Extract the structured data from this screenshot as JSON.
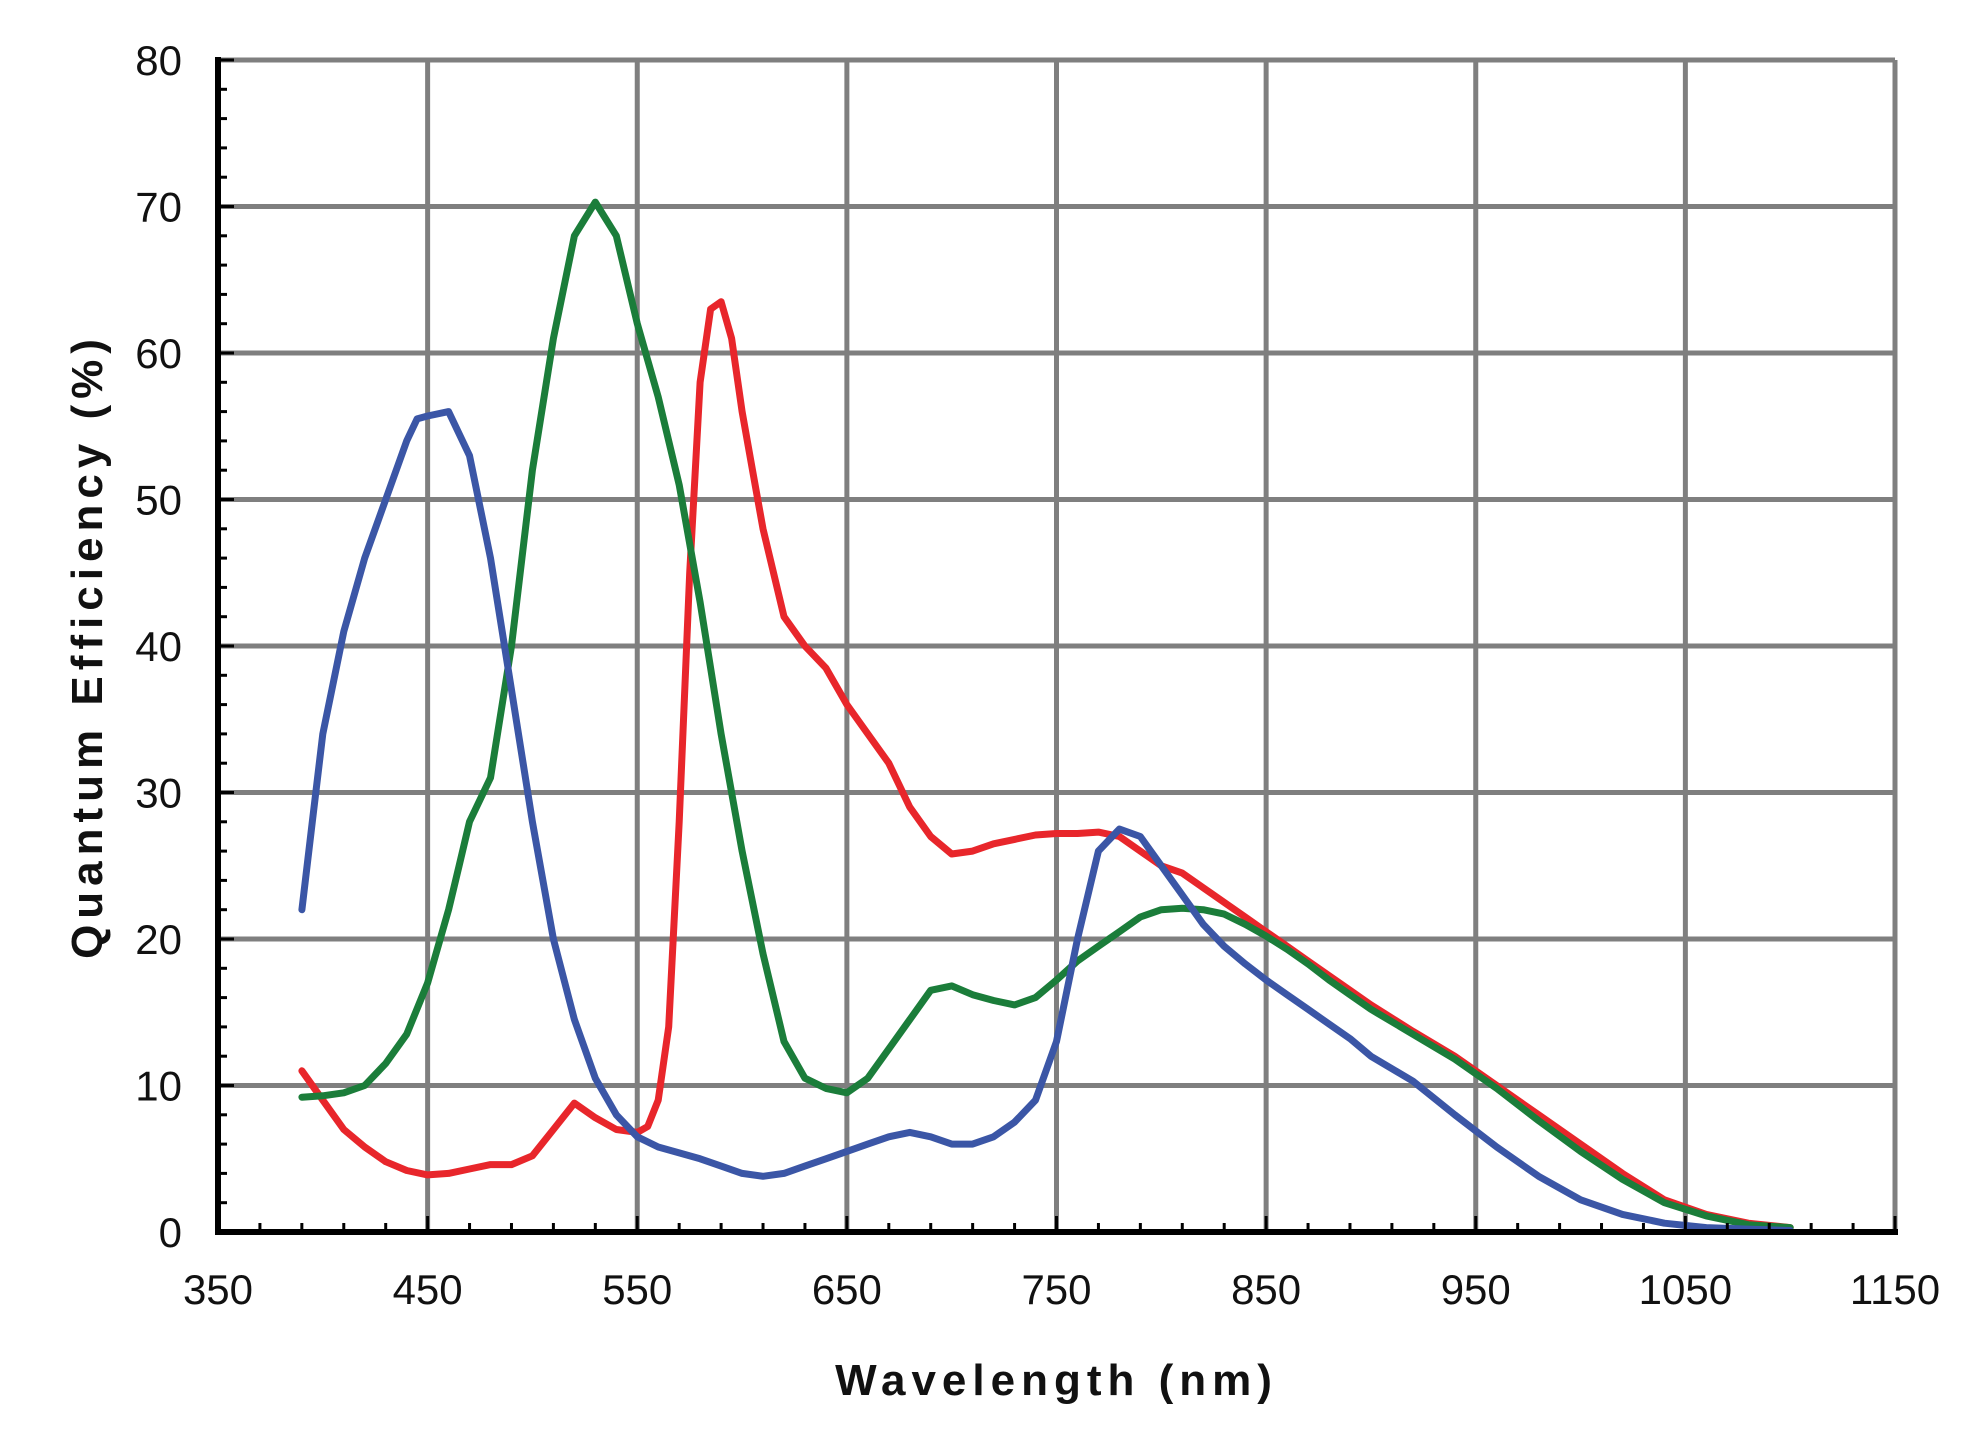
{
  "chart_data": {
    "type": "line",
    "title": "",
    "xlabel": "Wavelength (nm)",
    "ylabel": "Quantum Efficiency (%)",
    "xlim": [
      350,
      1150
    ],
    "ylim": [
      0,
      80
    ],
    "x_ticks": [
      350,
      450,
      550,
      650,
      750,
      850,
      950,
      1050,
      1150
    ],
    "y_ticks": [
      0,
      10,
      20,
      30,
      40,
      50,
      60,
      70,
      80
    ],
    "grid": true,
    "legend": "none",
    "colors": {
      "grid": "#7f7f7f",
      "axis": "#000000",
      "red": "#e8262b",
      "green": "#1b7d3a",
      "blue": "#3b56a6"
    },
    "series": [
      {
        "color": "#e8262b",
        "x": [
          390,
          400,
          410,
          420,
          430,
          440,
          450,
          460,
          470,
          480,
          490,
          500,
          510,
          520,
          530,
          540,
          550,
          555,
          560,
          565,
          570,
          575,
          580,
          585,
          590,
          595,
          600,
          605,
          610,
          620,
          630,
          640,
          650,
          660,
          670,
          680,
          690,
          700,
          710,
          720,
          730,
          740,
          750,
          760,
          770,
          780,
          790,
          800,
          810,
          820,
          830,
          840,
          850,
          860,
          870,
          880,
          890,
          900,
          920,
          940,
          960,
          980,
          1000,
          1020,
          1040,
          1060,
          1080,
          1100
        ],
        "y": [
          11,
          9,
          7,
          5.8,
          4.8,
          4.2,
          3.9,
          4,
          4.3,
          4.6,
          4.6,
          5.2,
          7,
          8.8,
          7.8,
          7,
          6.8,
          7.2,
          9,
          14,
          28,
          45,
          58,
          63,
          63.5,
          61,
          56,
          52,
          48,
          42,
          40,
          38.5,
          36,
          34,
          32,
          29,
          27,
          25.8,
          26,
          26.5,
          26.8,
          27.1,
          27.2,
          27.2,
          27.3,
          27,
          26,
          25,
          24.5,
          23.5,
          22.5,
          21.5,
          20.5,
          19.5,
          18.5,
          17.5,
          16.5,
          15.5,
          13.7,
          12,
          10,
          8,
          6,
          4,
          2.2,
          1.2,
          0.6,
          0.3
        ]
      },
      {
        "color": "#1b7d3a",
        "x": [
          390,
          400,
          410,
          420,
          430,
          440,
          450,
          460,
          465,
          470,
          480,
          490,
          500,
          510,
          520,
          530,
          540,
          550,
          560,
          570,
          580,
          590,
          600,
          610,
          620,
          630,
          640,
          650,
          660,
          670,
          680,
          690,
          700,
          710,
          720,
          730,
          740,
          750,
          760,
          770,
          780,
          790,
          800,
          810,
          820,
          830,
          840,
          850,
          860,
          870,
          880,
          890,
          900,
          920,
          940,
          960,
          980,
          1000,
          1020,
          1040,
          1060,
          1080,
          1100
        ],
        "y": [
          9.2,
          9.3,
          9.5,
          10,
          11.5,
          13.5,
          17,
          22,
          25,
          28,
          31,
          40,
          52,
          61,
          68,
          70.3,
          68,
          62,
          57,
          51,
          43,
          34,
          26,
          19,
          13,
          10.5,
          9.8,
          9.5,
          10.5,
          12.5,
          14.5,
          16.5,
          16.8,
          16.2,
          15.8,
          15.5,
          16,
          17.2,
          18.5,
          19.5,
          20.5,
          21.5,
          22,
          22.1,
          22,
          21.7,
          21,
          20.2,
          19.3,
          18.3,
          17.2,
          16.2,
          15.2,
          13.5,
          11.8,
          9.8,
          7.6,
          5.5,
          3.6,
          2,
          1.1,
          0.5,
          0.3
        ]
      },
      {
        "color": "#3b56a6",
        "x": [
          390,
          395,
          400,
          410,
          420,
          430,
          440,
          445,
          450,
          460,
          470,
          480,
          490,
          500,
          510,
          520,
          530,
          540,
          550,
          560,
          570,
          580,
          590,
          600,
          610,
          620,
          630,
          640,
          650,
          660,
          670,
          680,
          690,
          700,
          710,
          720,
          730,
          740,
          750,
          760,
          770,
          780,
          790,
          800,
          810,
          820,
          830,
          840,
          850,
          860,
          870,
          880,
          890,
          900,
          920,
          940,
          960,
          980,
          1000,
          1020,
          1040,
          1060,
          1080,
          1100
        ],
        "y": [
          22,
          28,
          34,
          41,
          46,
          50,
          54,
          55.5,
          55.7,
          56,
          53,
          46,
          37,
          28,
          20,
          14.5,
          10.5,
          8,
          6.5,
          5.8,
          5.4,
          5,
          4.5,
          4,
          3.8,
          4,
          4.5,
          5,
          5.5,
          6,
          6.5,
          6.8,
          6.5,
          6,
          6,
          6.5,
          7.5,
          9,
          13,
          20,
          26,
          27.5,
          27,
          25,
          23,
          21,
          19.5,
          18.3,
          17.2,
          16.2,
          15.2,
          14.2,
          13.2,
          12,
          10.3,
          8,
          5.8,
          3.8,
          2.2,
          1.2,
          0.6,
          0.3,
          0.2,
          0.1
        ]
      }
    ]
  }
}
